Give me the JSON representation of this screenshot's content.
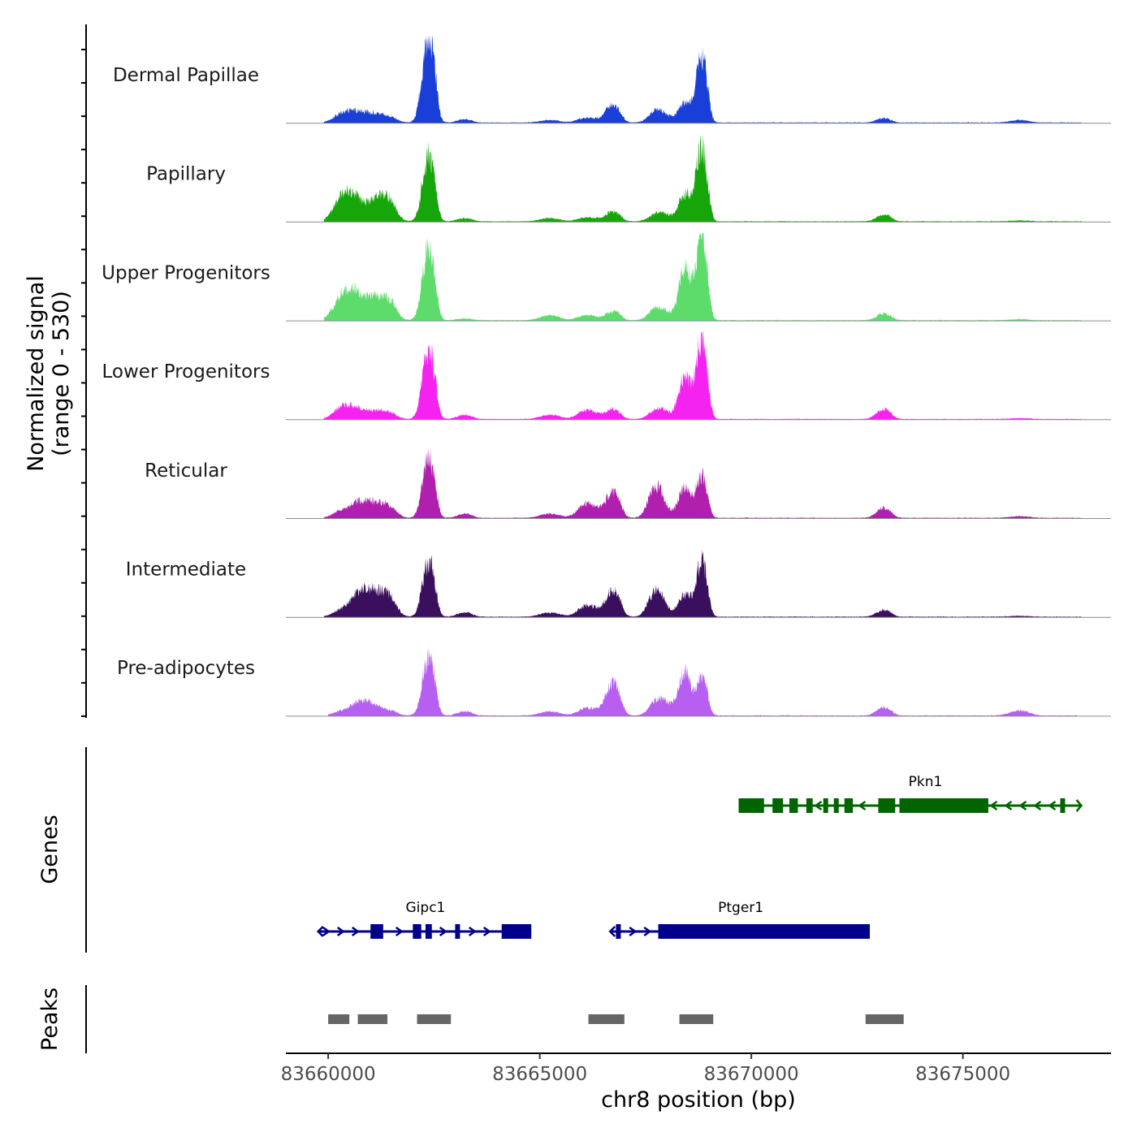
{
  "chart_data": {
    "type": "area",
    "title": "",
    "ylabel": "Normalized signal\n(range 0 - 530)",
    "ylabel_lines": [
      "Normalized signal",
      "(range 0 - 530)"
    ],
    "ylim": [
      0,
      530
    ],
    "xlabel": "chr8 position (bp)",
    "xlim": [
      83659000,
      83678500
    ],
    "xticks": [
      83660000,
      83665000,
      83670000,
      83675000
    ],
    "xtick_labels": [
      "83660000",
      "83665000",
      "83670000",
      "83675000"
    ],
    "peak_centers": [
      83660350,
      83660800,
      83661300,
      83662350,
      83663200,
      83665200,
      83666100,
      83666700,
      83667700,
      83667900,
      83668400,
      83668800,
      83673100,
      83676300
    ],
    "peak_widths": [
      200,
      200,
      200,
      130,
      150,
      200,
      200,
      150,
      150,
      200,
      120,
      120,
      150,
      200
    ],
    "series": [
      {
        "name": "Dermal Papillae",
        "color": "#1a3fd9",
        "data_start": 83659900,
        "data_end": 83677800,
        "heights": [
          60,
          60,
          45,
          530,
          20,
          15,
          30,
          110,
          50,
          40,
          120,
          400,
          25,
          15
        ]
      },
      {
        "name": "Papillary",
        "color": "#17a60a",
        "data_start": 83659900,
        "data_end": 83677800,
        "heights": [
          170,
          100,
          160,
          400,
          20,
          20,
          25,
          60,
          25,
          40,
          165,
          460,
          40,
          5
        ]
      },
      {
        "name": "Upper Progenitors",
        "color": "#5ddc6c",
        "data_start": 83659900,
        "data_end": 83677800,
        "heights": [
          170,
          130,
          140,
          430,
          10,
          30,
          30,
          55,
          45,
          45,
          320,
          520,
          40,
          5
        ]
      },
      {
        "name": "Lower Progenitors",
        "color": "#f523f0",
        "data_start": 83659900,
        "data_end": 83677800,
        "heights": [
          80,
          50,
          50,
          420,
          25,
          25,
          55,
          60,
          30,
          45,
          250,
          500,
          60,
          5
        ]
      },
      {
        "name": "Reticular",
        "color": "#b01fae",
        "data_start": 83659900,
        "data_end": 83677800,
        "heights": [
          50,
          100,
          90,
          360,
          25,
          25,
          90,
          160,
          160,
          45,
          175,
          260,
          60,
          10
        ]
      },
      {
        "name": "Intermediate",
        "color": "#3a0f5e",
        "data_start": 83659900,
        "data_end": 83677800,
        "heights": [
          50,
          160,
          150,
          330,
          25,
          25,
          70,
          160,
          130,
          45,
          130,
          340,
          40,
          5
        ]
      },
      {
        "name": "Pre-adipocytes",
        "color": "#b65ff1",
        "data_start": 83660000,
        "data_end": 83677700,
        "heights": [
          30,
          90,
          40,
          350,
          25,
          25,
          45,
          200,
          40,
          80,
          260,
          230,
          50,
          30
        ]
      }
    ],
    "genes": {
      "title": "Genes",
      "items": [
        {
          "name": "Pkn1",
          "strand": "-",
          "color": "#006400",
          "row": 1,
          "start": 83669700,
          "end": 83677800,
          "exons": [
            [
              83669700,
              83670300
            ],
            [
              83670500,
              83670750
            ],
            [
              83670900,
              83671100
            ],
            [
              83671300,
              83671450
            ],
            [
              83671700,
              83671800
            ],
            [
              83671950,
              83672050
            ],
            [
              83672200,
              83672400
            ],
            [
              83673000,
              83673400
            ],
            [
              83673500,
              83675600
            ],
            [
              83677300,
              83677400
            ]
          ]
        },
        {
          "name": "Gipc1",
          "strand": "+",
          "color": "#00008b",
          "row": 2,
          "start": 83659800,
          "end": 83664800,
          "exons": [
            [
              83661000,
              83661300
            ],
            [
              83662000,
              83662200
            ],
            [
              83662300,
              83662450
            ],
            [
              83663000,
              83663100
            ],
            [
              83664100,
              83664800
            ]
          ]
        },
        {
          "name": "Ptger1",
          "strand": "+",
          "color": "#00008b",
          "row": 2,
          "start": 83666700,
          "end": 83672800,
          "exons": [
            [
              83666800,
              83666900
            ],
            [
              83667800,
              83672800
            ]
          ]
        }
      ]
    },
    "peaks": {
      "title": "Peaks",
      "color": "#666666",
      "regions": [
        [
          83660000,
          83660500
        ],
        [
          83660700,
          83661400
        ],
        [
          83662100,
          83662900
        ],
        [
          83666150,
          83667000
        ],
        [
          83668300,
          83669100
        ],
        [
          83672700,
          83673600
        ]
      ]
    }
  }
}
